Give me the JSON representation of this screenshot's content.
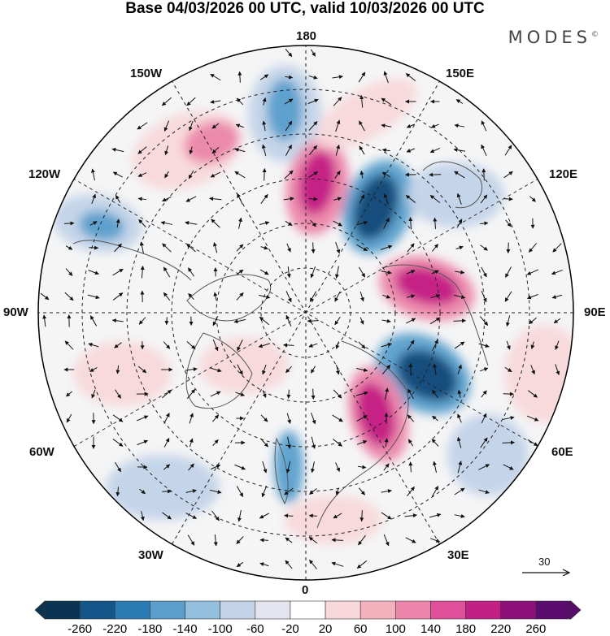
{
  "header": {
    "title": "Base 04/03/2026 00 UTC, valid 10/03/2026 00 UTC",
    "brand": "MODES",
    "brand_mark": "©"
  },
  "longitude_labels": {
    "top": "180",
    "lon_150w": "150W",
    "lon_150e": "150E",
    "lon_120w": "120W",
    "lon_120e": "120E",
    "lon_90w": "90W",
    "lon_90e": "90E",
    "lon_60w": "60W",
    "lon_60e": "60E",
    "lon_30w": "30W",
    "lon_30e": "30E",
    "bottom": "0"
  },
  "reference_vector": {
    "label": "30"
  },
  "colorbar": {
    "colors": [
      "#0b3452",
      "#12568a",
      "#2b7cb5",
      "#5a9fcc",
      "#94bfdf",
      "#c2d3e8",
      "#e3e4f0",
      "#ffffff",
      "#f8d8da",
      "#f3b1bc",
      "#ec86aa",
      "#e0509a",
      "#c41f85",
      "#8d0f78",
      "#5b0a6e"
    ],
    "labels": [
      "-260",
      "-220",
      "-180",
      "-140",
      "-100",
      "-60",
      "-20",
      "20",
      "60",
      "100",
      "140",
      "180",
      "220",
      "260"
    ]
  },
  "anomaly_colors": {
    "neg_strong": "#0f4a78",
    "neg_mid": "#5a9fcc",
    "neg_weak": "#c2d3e8",
    "pos_weak": "#f8d8da",
    "pos_mid": "#ec86aa",
    "pos_strong": "#c41f85"
  }
}
